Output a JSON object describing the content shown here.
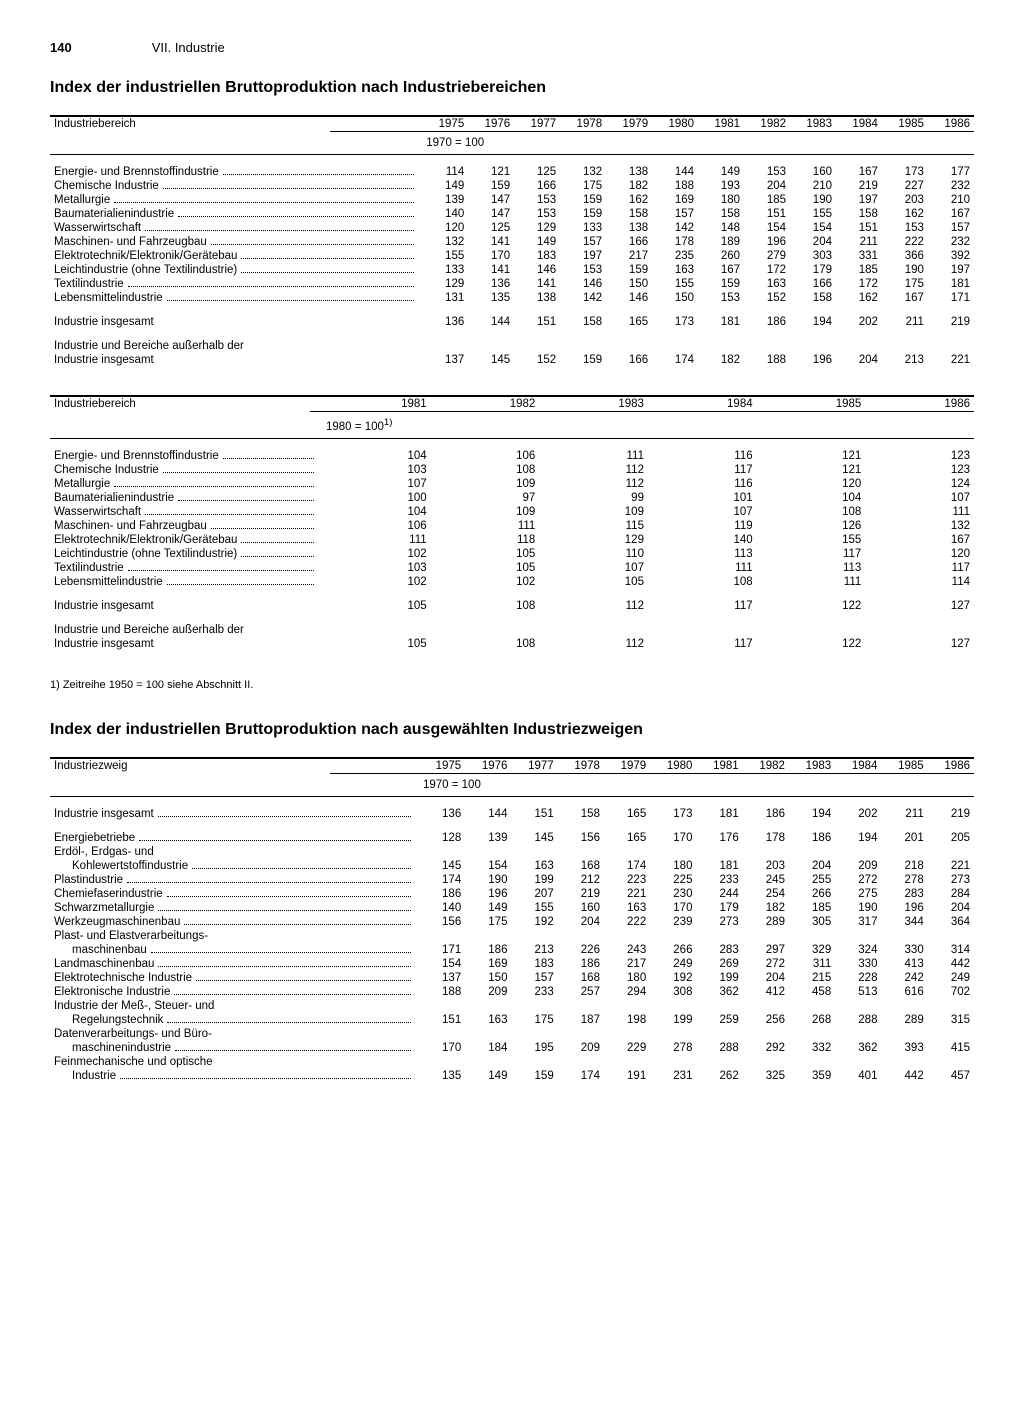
{
  "page": {
    "number": "140",
    "section": "VII. Industrie"
  },
  "title1": "Index der industriellen Bruttoproduktion nach Industriebereichen",
  "title2": "Index der industriellen Bruttoproduktion nach ausgewählten Industriezweigen",
  "table1": {
    "header_label": "Industriebereich",
    "years": [
      "1975",
      "1976",
      "1977",
      "1978",
      "1979",
      "1980",
      "1981",
      "1982",
      "1983",
      "1984",
      "1985",
      "1986"
    ],
    "baseline": "1970 = 100",
    "rows": [
      {
        "label": "Energie- und Brennstoffindustrie",
        "v": [
          "114",
          "121",
          "125",
          "132",
          "138",
          "144",
          "149",
          "153",
          "160",
          "167",
          "173",
          "177"
        ]
      },
      {
        "label": "Chemische Industrie",
        "v": [
          "149",
          "159",
          "166",
          "175",
          "182",
          "188",
          "193",
          "204",
          "210",
          "219",
          "227",
          "232"
        ]
      },
      {
        "label": "Metallurgie",
        "v": [
          "139",
          "147",
          "153",
          "159",
          "162",
          "169",
          "180",
          "185",
          "190",
          "197",
          "203",
          "210"
        ]
      },
      {
        "label": "Baumaterialienindustrie",
        "v": [
          "140",
          "147",
          "153",
          "159",
          "158",
          "157",
          "158",
          "151",
          "155",
          "158",
          "162",
          "167"
        ]
      },
      {
        "label": "Wasserwirtschaft",
        "v": [
          "120",
          "125",
          "129",
          "133",
          "138",
          "142",
          "148",
          "154",
          "154",
          "151",
          "153",
          "157"
        ]
      },
      {
        "label": "Maschinen- und Fahrzeugbau",
        "v": [
          "132",
          "141",
          "149",
          "157",
          "166",
          "178",
          "189",
          "196",
          "204",
          "211",
          "222",
          "232"
        ]
      },
      {
        "label": "Elektrotechnik/Elektronik/Gerätebau",
        "v": [
          "155",
          "170",
          "183",
          "197",
          "217",
          "235",
          "260",
          "279",
          "303",
          "331",
          "366",
          "392"
        ]
      },
      {
        "label": "Leichtindustrie (ohne Textilindustrie)",
        "v": [
          "133",
          "141",
          "146",
          "153",
          "159",
          "163",
          "167",
          "172",
          "179",
          "185",
          "190",
          "197"
        ]
      },
      {
        "label": "Textilindustrie",
        "v": [
          "129",
          "136",
          "141",
          "146",
          "150",
          "155",
          "159",
          "163",
          "166",
          "172",
          "175",
          "181"
        ]
      },
      {
        "label": "Lebensmittelindustrie",
        "v": [
          "131",
          "135",
          "138",
          "142",
          "146",
          "150",
          "153",
          "152",
          "158",
          "162",
          "167",
          "171"
        ]
      }
    ],
    "total": {
      "label": "Industrie insgesamt",
      "v": [
        "136",
        "144",
        "151",
        "158",
        "165",
        "173",
        "181",
        "186",
        "194",
        "202",
        "211",
        "219"
      ]
    },
    "total2_label1": "Industrie und Bereiche außerhalb der",
    "total2_label2": "Industrie insgesamt",
    "total2_v": [
      "137",
      "145",
      "152",
      "159",
      "166",
      "174",
      "182",
      "188",
      "196",
      "204",
      "213",
      "221"
    ]
  },
  "table2": {
    "header_label": "Industriebereich",
    "years": [
      "1981",
      "1982",
      "1983",
      "1984",
      "1985",
      "1986"
    ],
    "baseline": "1980 = 100",
    "baseline_sup": "1)",
    "rows": [
      {
        "label": "Energie- und Brennstoffindustrie",
        "v": [
          "104",
          "106",
          "111",
          "116",
          "121",
          "123"
        ]
      },
      {
        "label": "Chemische Industrie",
        "v": [
          "103",
          "108",
          "112",
          "117",
          "121",
          "123"
        ]
      },
      {
        "label": "Metallurgie",
        "v": [
          "107",
          "109",
          "112",
          "116",
          "120",
          "124"
        ]
      },
      {
        "label": "Baumaterialienindustrie",
        "v": [
          "100",
          "97",
          "99",
          "101",
          "104",
          "107"
        ]
      },
      {
        "label": "Wasserwirtschaft",
        "v": [
          "104",
          "109",
          "109",
          "107",
          "108",
          "111"
        ]
      },
      {
        "label": "Maschinen- und Fahrzeugbau",
        "v": [
          "106",
          "111",
          "115",
          "119",
          "126",
          "132"
        ]
      },
      {
        "label": "Elektrotechnik/Elektronik/Gerätebau",
        "v": [
          "111",
          "118",
          "129",
          "140",
          "155",
          "167"
        ]
      },
      {
        "label": "Leichtindustrie (ohne Textilindustrie)",
        "v": [
          "102",
          "105",
          "110",
          "113",
          "117",
          "120"
        ]
      },
      {
        "label": "Textilindustrie",
        "v": [
          "103",
          "105",
          "107",
          "111",
          "113",
          "117"
        ]
      },
      {
        "label": "Lebensmittelindustrie",
        "v": [
          "102",
          "102",
          "105",
          "108",
          "111",
          "114"
        ]
      }
    ],
    "total": {
      "label": "Industrie insgesamt",
      "v": [
        "105",
        "108",
        "112",
        "117",
        "122",
        "127"
      ]
    },
    "total2_label1": "Industrie und Bereiche außerhalb der",
    "total2_label2": "Industrie insgesamt",
    "total2_v": [
      "105",
      "108",
      "112",
      "117",
      "122",
      "127"
    ]
  },
  "footnote": "1) Zeitreihe 1950 = 100 siehe Abschnitt II.",
  "table3": {
    "header_label": "Industriezweig",
    "years": [
      "1975",
      "1976",
      "1977",
      "1978",
      "1979",
      "1980",
      "1981",
      "1982",
      "1983",
      "1984",
      "1985",
      "1986"
    ],
    "baseline": "1970 = 100",
    "total": {
      "label": "Industrie insgesamt",
      "v": [
        "136",
        "144",
        "151",
        "158",
        "165",
        "173",
        "181",
        "186",
        "194",
        "202",
        "211",
        "219"
      ]
    },
    "rows": [
      {
        "label": "Energiebetriebe",
        "v": [
          "128",
          "139",
          "145",
          "156",
          "165",
          "170",
          "176",
          "178",
          "186",
          "194",
          "201",
          "205"
        ],
        "indent": 0
      },
      {
        "label": "Erdöl-, Erdgas- und",
        "v": [
          "",
          "",
          "",
          "",
          "",
          "",
          "",
          "",
          "",
          "",
          "",
          ""
        ],
        "indent": 0,
        "nobreak": true
      },
      {
        "label": "Kohlewertstoffindustrie",
        "v": [
          "145",
          "154",
          "163",
          "168",
          "174",
          "180",
          "181",
          "203",
          "204",
          "209",
          "218",
          "221"
        ],
        "indent": 1
      },
      {
        "label": "Plastindustrie",
        "v": [
          "174",
          "190",
          "199",
          "212",
          "223",
          "225",
          "233",
          "245",
          "255",
          "272",
          "278",
          "273"
        ],
        "indent": 0
      },
      {
        "label": "Chemiefaserindustrie",
        "v": [
          "186",
          "196",
          "207",
          "219",
          "221",
          "230",
          "244",
          "254",
          "266",
          "275",
          "283",
          "284"
        ],
        "indent": 0
      },
      {
        "label": "Schwarzmetallurgie",
        "v": [
          "140",
          "149",
          "155",
          "160",
          "163",
          "170",
          "179",
          "182",
          "185",
          "190",
          "196",
          "204"
        ],
        "indent": 0
      },
      {
        "label": "Werkzeugmaschinenbau",
        "v": [
          "156",
          "175",
          "192",
          "204",
          "222",
          "239",
          "273",
          "289",
          "305",
          "317",
          "344",
          "364"
        ],
        "indent": 0
      },
      {
        "label": "Plast- und Elastverarbeitungs-",
        "v": [
          "",
          "",
          "",
          "",
          "",
          "",
          "",
          "",
          "",
          "",
          "",
          ""
        ],
        "indent": 0,
        "nobreak": true
      },
      {
        "label": "maschinenbau",
        "v": [
          "171",
          "186",
          "213",
          "226",
          "243",
          "266",
          "283",
          "297",
          "329",
          "324",
          "330",
          "314"
        ],
        "indent": 1
      },
      {
        "label": "Landmaschinenbau",
        "v": [
          "154",
          "169",
          "183",
          "186",
          "217",
          "249",
          "269",
          "272",
          "311",
          "330",
          "413",
          "442"
        ],
        "indent": 0
      },
      {
        "label": "Elektrotechnische Industrie",
        "v": [
          "137",
          "150",
          "157",
          "168",
          "180",
          "192",
          "199",
          "204",
          "215",
          "228",
          "242",
          "249"
        ],
        "indent": 0
      },
      {
        "label": "Elektronische Industrie",
        "v": [
          "188",
          "209",
          "233",
          "257",
          "294",
          "308",
          "362",
          "412",
          "458",
          "513",
          "616",
          "702"
        ],
        "indent": 0
      },
      {
        "label": "Industrie der Meß-, Steuer- und",
        "v": [
          "",
          "",
          "",
          "",
          "",
          "",
          "",
          "",
          "",
          "",
          "",
          ""
        ],
        "indent": 0,
        "nobreak": true
      },
      {
        "label": "Regelungstechnik",
        "v": [
          "151",
          "163",
          "175",
          "187",
          "198",
          "199",
          "259",
          "256",
          "268",
          "288",
          "289",
          "315"
        ],
        "indent": 1
      },
      {
        "label": "Datenverarbeitungs- und Büro-",
        "v": [
          "",
          "",
          "",
          "",
          "",
          "",
          "",
          "",
          "",
          "",
          "",
          ""
        ],
        "indent": 0,
        "nobreak": true
      },
      {
        "label": "maschinenindustrie",
        "v": [
          "170",
          "184",
          "195",
          "209",
          "229",
          "278",
          "288",
          "292",
          "332",
          "362",
          "393",
          "415"
        ],
        "indent": 1
      },
      {
        "label": "Feinmechanische und optische",
        "v": [
          "",
          "",
          "",
          "",
          "",
          "",
          "",
          "",
          "",
          "",
          "",
          ""
        ],
        "indent": 0,
        "nobreak": true
      },
      {
        "label": "Industrie",
        "v": [
          "135",
          "149",
          "159",
          "174",
          "191",
          "231",
          "262",
          "325",
          "359",
          "401",
          "442",
          "457"
        ],
        "indent": 1
      }
    ]
  }
}
